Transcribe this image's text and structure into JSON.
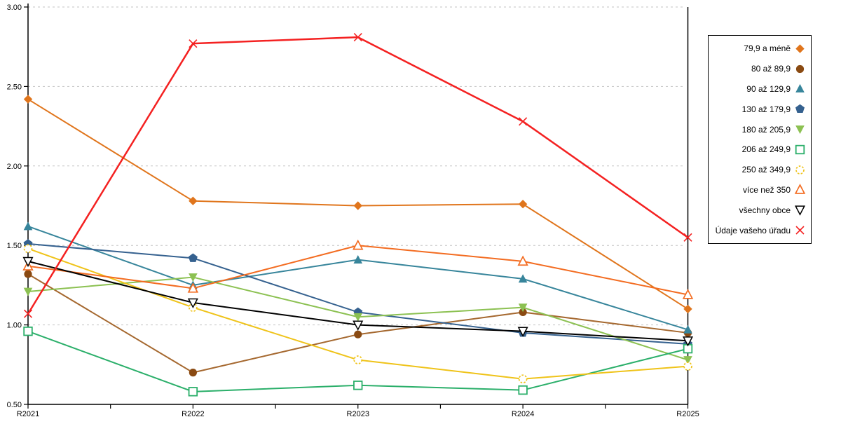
{
  "chart_data": {
    "type": "line",
    "title": "",
    "xlabel": "",
    "ylabel": "",
    "x_labels": [
      "R2021",
      "R2022",
      "R2023",
      "R2024",
      "R2025"
    ],
    "y_tick_labels": [
      "3.00",
      "2.50",
      "2.00",
      "1.50",
      "1.00",
      "0.50"
    ],
    "y_tick_values": [
      3.0,
      2.5,
      2.0,
      1.5,
      1.0,
      0.5
    ],
    "ylim": [
      0.5,
      3.0
    ],
    "grid": "horizontal-dashed",
    "legend_position": "right-outside",
    "series": [
      {
        "name": "79,9 a méně",
        "marker": "diamond",
        "filled": true,
        "color": "#E0751C",
        "values": [
          2.42,
          1.78,
          1.75,
          1.76,
          1.1
        ]
      },
      {
        "name": "80 až 89,9",
        "marker": "circle",
        "filled": true,
        "color": "#8A4A12",
        "line_color": "#A5682F",
        "values": [
          1.32,
          0.7,
          0.94,
          1.08,
          0.95
        ]
      },
      {
        "name": "90 až 129,9",
        "marker": "triangle-up",
        "filled": true,
        "color": "#37859B",
        "values": [
          1.62,
          1.25,
          1.41,
          1.29,
          0.97
        ]
      },
      {
        "name": "130 až 179,9",
        "marker": "pentagon",
        "filled": true,
        "color": "#35618F",
        "values": [
          1.51,
          1.42,
          1.08,
          0.95,
          0.88
        ]
      },
      {
        "name": "180 až 205,9",
        "marker": "triangle-down",
        "filled": true,
        "color": "#8CC152",
        "values": [
          1.21,
          1.3,
          1.05,
          1.11,
          0.78
        ]
      },
      {
        "name": "206 až 249,9",
        "marker": "square",
        "filled": false,
        "color": "#2BAF6A",
        "values": [
          0.96,
          0.58,
          0.62,
          0.59,
          0.85
        ]
      },
      {
        "name": "250 až 349,9",
        "marker": "circle-dashed",
        "filled": false,
        "color": "#EFC319",
        "values": [
          1.48,
          1.11,
          0.78,
          0.66,
          0.74
        ]
      },
      {
        "name": "více než 350",
        "marker": "triangle-up",
        "filled": false,
        "color": "#F36C21",
        "values": [
          1.37,
          1.23,
          1.5,
          1.4,
          1.19
        ]
      },
      {
        "name": "všechny obce",
        "marker": "triangle-down",
        "filled": false,
        "color": "#000000",
        "values": [
          1.4,
          1.14,
          1.0,
          0.96,
          0.9
        ]
      },
      {
        "name": "Údaje vašeho úřadu",
        "marker": "x",
        "filled": false,
        "color": "#F42121",
        "line_width": 2.5,
        "values": [
          1.07,
          2.77,
          2.81,
          2.28,
          1.55
        ]
      }
    ],
    "colors": {
      "gridline": "#C3C3C3",
      "axis": "#000000",
      "background": "#FFFFFF"
    }
  }
}
